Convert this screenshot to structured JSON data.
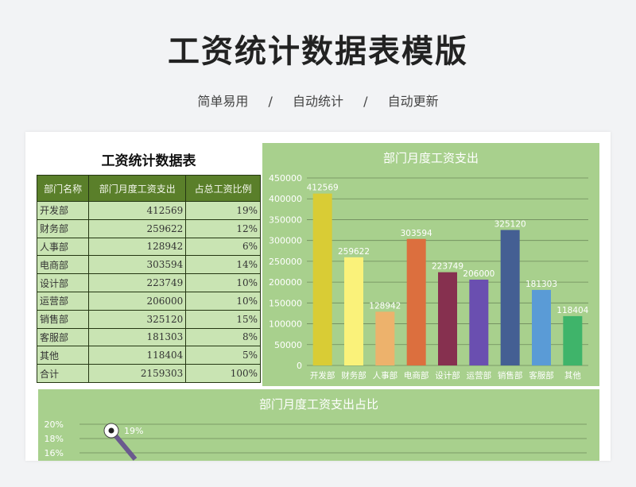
{
  "page": {
    "title": "工资统计数据表模版",
    "subtitle": [
      "简单易用",
      "/",
      "自动统计",
      "/",
      "自动更新"
    ]
  },
  "table": {
    "title": "工资统计数据表",
    "headers": [
      "部门名称",
      "部门月度工资支出",
      "占总工资比例"
    ],
    "rows": [
      [
        "开发部",
        "412569",
        "19%"
      ],
      [
        "财务部",
        "259622",
        "12%"
      ],
      [
        "人事部",
        "128942",
        "6%"
      ],
      [
        "电商部",
        "303594",
        "14%"
      ],
      [
        "设计部",
        "223749",
        "10%"
      ],
      [
        "运营部",
        "206000",
        "10%"
      ],
      [
        "销售部",
        "325120",
        "15%"
      ],
      [
        "客服部",
        "181303",
        "8%"
      ],
      [
        "其他",
        "118404",
        "5%"
      ],
      [
        "合计",
        "2159303",
        "100%"
      ]
    ]
  },
  "colors": {
    "panel_bg": "#a8d08d",
    "header_bg": "#5a7f2a",
    "cell_bg": "#c9e4b3"
  },
  "chart_data": [
    {
      "type": "bar",
      "title": "部门月度工资支出",
      "categories": [
        "开发部",
        "财务部",
        "人事部",
        "电商部",
        "设计部",
        "运营部",
        "销售部",
        "客服部",
        "其他"
      ],
      "values": [
        412569,
        259622,
        128942,
        303594,
        223749,
        206000,
        325120,
        181303,
        118404
      ],
      "bar_colors": [
        "#d9cc35",
        "#faf27a",
        "#edb26c",
        "#dc6f3e",
        "#86304f",
        "#6a4fb0",
        "#445f93",
        "#5a9bd6",
        "#3fb46a"
      ],
      "ylim": [
        0,
        450000
      ],
      "yticks": [
        "0",
        "50000",
        "100000",
        "150000",
        "200000",
        "250000",
        "300000",
        "350000",
        "400000",
        "450000"
      ],
      "grid": true,
      "data_labels": true
    },
    {
      "type": "line",
      "title": "部门月度工资支出占比",
      "yticks_visible": [
        "20%",
        "18%",
        "16%"
      ],
      "visible_point": {
        "category": "开发部",
        "value": 19,
        "label": "19%"
      },
      "grid": true
    }
  ]
}
